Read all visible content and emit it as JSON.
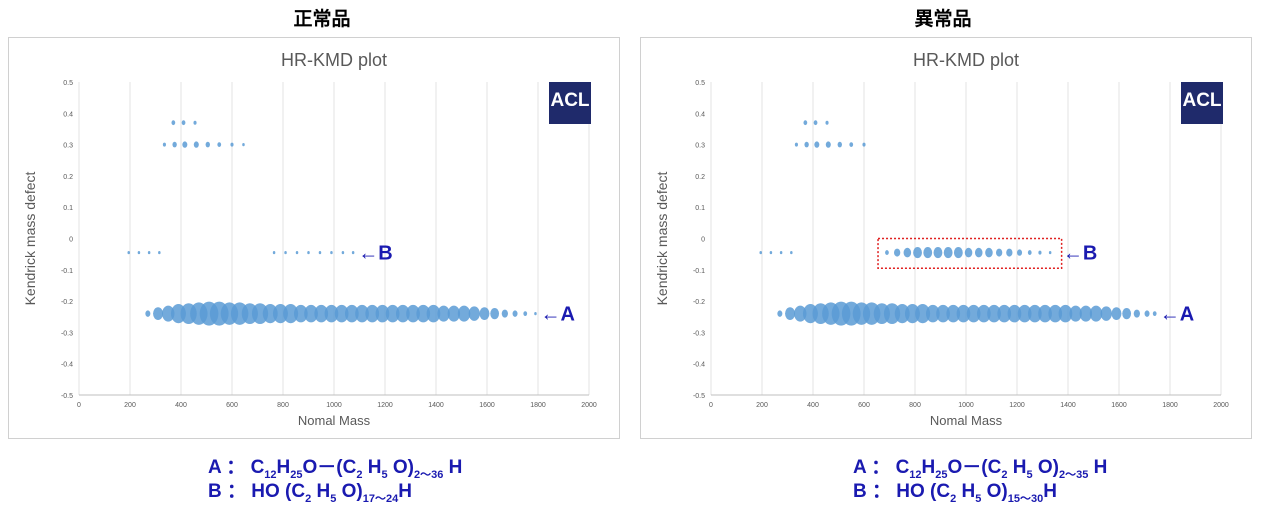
{
  "panels": [
    {
      "heading": "正常品",
      "logo": "ACL",
      "chart_data": {
        "type": "scatter",
        "title": "HR-KMD plot",
        "xlabel": "Nomal Mass",
        "ylabel": "Kendrick mass defect",
        "xlim": [
          0,
          2000
        ],
        "ylim": [
          -0.5,
          0.5
        ],
        "xticks": [
          0,
          200,
          400,
          600,
          800,
          1000,
          1200,
          1400,
          1600,
          1800,
          2000
        ],
        "yticks": [
          -0.5,
          -0.4,
          -0.3,
          -0.2,
          -0.1,
          0,
          0.1,
          0.2,
          0.3,
          0.4,
          0.5
        ],
        "grid": "vertical",
        "color": "#5b9bd5",
        "series": [
          {
            "label": "",
            "y": 0.37,
            "x": [
              370,
              410,
              455
            ],
            "size": [
              3,
              3,
              2.5
            ]
          },
          {
            "label": "",
            "y": 0.3,
            "x": [
              335,
              375,
              415,
              460,
              505,
              550,
              600,
              645
            ],
            "size": [
              2.5,
              3.5,
              4,
              4,
              3.5,
              3,
              2.5,
              2
            ]
          },
          {
            "label": "",
            "y": -0.045,
            "x": [
              195,
              235,
              275,
              315
            ],
            "size": [
              2,
              2,
              2,
              2
            ]
          },
          {
            "label": "B",
            "y": -0.045,
            "x": [
              765,
              810,
              855,
              900,
              945,
              990,
              1035,
              1075
            ],
            "size": [
              2,
              2,
              2,
              2,
              2,
              2,
              2,
              2
            ]
          },
          {
            "label": "A",
            "y": -0.24,
            "x": [
              270,
              310,
              350,
              390,
              430,
              470,
              510,
              550,
              590,
              630,
              670,
              710,
              750,
              790,
              830,
              870,
              910,
              950,
              990,
              1030,
              1070,
              1110,
              1150,
              1190,
              1230,
              1270,
              1310,
              1350,
              1390,
              1430,
              1470,
              1510,
              1550,
              1590,
              1630,
              1670,
              1710,
              1750,
              1790
            ],
            "size": [
              4,
              8,
              10,
              12,
              13,
              14,
              15,
              15,
              14,
              14,
              13,
              13,
              12,
              12,
              12,
              11,
              11,
              11,
              11,
              11,
              11,
              11,
              11,
              11,
              11,
              11,
              11,
              11,
              11,
              10,
              10,
              10,
              9,
              8,
              7,
              5,
              4,
              3,
              2
            ]
          }
        ]
      },
      "annotations": [
        {
          "text": "←B",
          "at_mass": 1095,
          "at_kmd": -0.045
        },
        {
          "text": "←A",
          "at_mass": 1810,
          "at_kmd": -0.24
        }
      ],
      "formula_a": {
        "prefix": "A ： C",
        "s1": "12",
        "p2": "H",
        "s2": "25",
        "p3": "O－(C",
        "s3": "2",
        "p4": " H",
        "s4": "5",
        "p5": " O)",
        "s5": "2～36",
        "p6": " H"
      },
      "formula_b": {
        "prefix": "B ： HO (C",
        "s1": "2",
        "p2": " H",
        "s2": "5",
        "p3": " O)",
        "s3": "17～24",
        "p4": "H"
      }
    },
    {
      "heading": "異常品",
      "logo": "ACL",
      "chart_data": {
        "type": "scatter",
        "title": "HR-KMD plot",
        "xlabel": "Nomal Mass",
        "ylabel": "Kendrick mass defect",
        "xlim": [
          0,
          2000
        ],
        "ylim": [
          -0.5,
          0.5
        ],
        "xticks": [
          0,
          200,
          400,
          600,
          800,
          1000,
          1200,
          1400,
          1600,
          1800,
          2000
        ],
        "yticks": [
          -0.5,
          -0.4,
          -0.3,
          -0.2,
          -0.1,
          0,
          0.1,
          0.2,
          0.3,
          0.4,
          0.5
        ],
        "grid": "vertical",
        "color": "#5b9bd5",
        "series": [
          {
            "label": "",
            "y": 0.37,
            "x": [
              370,
              410,
              455
            ],
            "size": [
              3,
              3,
              2.5
            ]
          },
          {
            "label": "",
            "y": 0.3,
            "x": [
              335,
              375,
              415,
              460,
              505,
              550,
              600
            ],
            "size": [
              2.5,
              3.5,
              4,
              4,
              3.5,
              3,
              2.5
            ]
          },
          {
            "label": "",
            "y": -0.045,
            "x": [
              195,
              235,
              275,
              315
            ],
            "size": [
              2,
              2,
              2,
              2
            ]
          },
          {
            "label": "B",
            "y": -0.045,
            "x": [
              690,
              730,
              770,
              810,
              850,
              890,
              930,
              970,
              1010,
              1050,
              1090,
              1130,
              1170,
              1210,
              1250,
              1290,
              1330
            ],
            "size": [
              3,
              5,
              6,
              7,
              7,
              7,
              7,
              7,
              6,
              6,
              6,
              5,
              5,
              4,
              3,
              2.5,
              2
            ]
          },
          {
            "label": "A",
            "y": -0.24,
            "x": [
              270,
              310,
              350,
              390,
              430,
              470,
              510,
              550,
              590,
              630,
              670,
              710,
              750,
              790,
              830,
              870,
              910,
              950,
              990,
              1030,
              1070,
              1110,
              1150,
              1190,
              1230,
              1270,
              1310,
              1350,
              1390,
              1430,
              1470,
              1510,
              1550,
              1590,
              1630,
              1670,
              1710,
              1740
            ],
            "size": [
              4,
              8,
              10,
              12,
              13,
              14,
              15,
              15,
              14,
              14,
              13,
              13,
              12,
              12,
              12,
              11,
              11,
              11,
              11,
              11,
              11,
              11,
              11,
              11,
              11,
              11,
              11,
              11,
              11,
              10,
              10,
              10,
              9,
              8,
              7,
              5,
              4,
              3
            ]
          }
        ]
      },
      "highlight_box": {
        "x": [
          655,
          1375
        ],
        "y": [
          0,
          -0.095
        ],
        "color": "#e02020"
      },
      "annotations": [
        {
          "text": "←B",
          "at_mass": 1380,
          "at_kmd": -0.045
        },
        {
          "text": "←A",
          "at_mass": 1760,
          "at_kmd": -0.24
        }
      ],
      "formula_a": {
        "prefix": "A ： C",
        "s1": "12",
        "p2": "H",
        "s2": "25",
        "p3": "O－(C",
        "s3": "2",
        "p4": " H",
        "s4": "5",
        "p5": " O)",
        "s5": "2～35",
        "p6": " H"
      },
      "formula_b": {
        "prefix": "B ： HO (C",
        "s1": "2",
        "p2": " H",
        "s2": "5",
        "p3": " O)",
        "s3": "15～30",
        "p4": "H"
      }
    }
  ]
}
